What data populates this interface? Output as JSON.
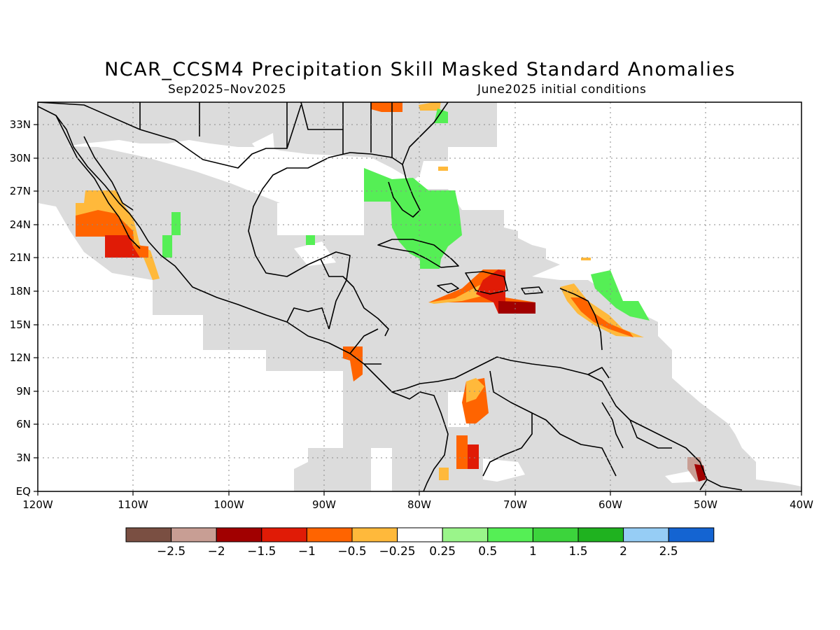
{
  "title": "NCAR_CCSM4 Precipitation Skill Masked Standard Anomalies",
  "subtitle_left": "Sep2025–Nov2025",
  "subtitle_right": "June2025 initial conditions",
  "map": {
    "lon_range": [
      -120,
      -40
    ],
    "lat_range": [
      0,
      35
    ],
    "lat_ticks": [
      "EQ",
      "3N",
      "6N",
      "9N",
      "12N",
      "15N",
      "18N",
      "21N",
      "24N",
      "27N",
      "30N",
      "33N"
    ],
    "lon_ticks": [
      "120W",
      "110W",
      "100W",
      "90W",
      "80W",
      "70W",
      "60W",
      "50W",
      "40W"
    ],
    "mask_color": "#dcdcdc",
    "grid": true
  },
  "colorbar": {
    "colors": [
      "#7a4f42",
      "#c89e94",
      "#a10000",
      "#e01b06",
      "#ff6400",
      "#ffb93b",
      "#ffffff",
      "#9af58a",
      "#55ef55",
      "#3cd43c",
      "#1fb21f",
      "#96cdf5",
      "#1464d2"
    ],
    "labels": [
      "−2.5",
      "−2",
      "−1.5",
      "−1",
      "−0.5",
      "−0.25",
      "0.25",
      "0.5",
      "1",
      "1.5",
      "2",
      "2.5"
    ]
  }
}
